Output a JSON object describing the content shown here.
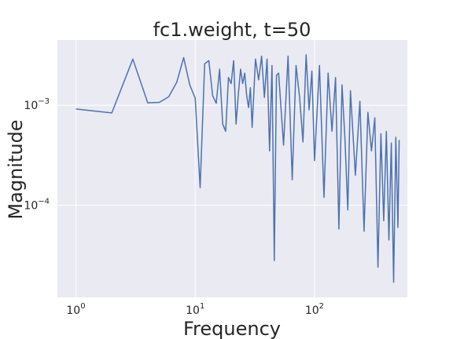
{
  "chart_data": {
    "type": "line",
    "title": "fc1.weight, t=50",
    "xlabel": "Frequency",
    "ylabel": "Magnitude",
    "xscale": "log",
    "yscale": "log",
    "xlim": [
      0.7,
      600
    ],
    "ylim": [
      1.2e-05,
      0.0045
    ],
    "grid": true,
    "background": "#EAEAF2",
    "line_color": "#4C72B0",
    "x_ticks": [
      {
        "value": 1,
        "base": "10",
        "exp": "0"
      },
      {
        "value": 10,
        "base": "10",
        "exp": "1"
      },
      {
        "value": 100,
        "base": "10",
        "exp": "2"
      }
    ],
    "y_ticks": [
      {
        "value": 0.0001,
        "base": "10",
        "exp": "−4"
      },
      {
        "value": 0.001,
        "base": "10",
        "exp": "−3"
      }
    ],
    "series": [
      {
        "x": [
          1,
          2,
          3,
          4,
          5,
          6,
          7,
          8,
          9,
          10,
          11,
          12,
          13,
          14,
          15,
          16,
          17,
          18,
          19,
          20,
          21,
          22,
          23,
          24,
          25,
          26,
          27,
          28,
          29,
          30,
          32,
          34,
          36,
          38,
          40,
          42,
          44,
          46,
          48,
          50,
          55,
          60,
          65,
          70,
          75,
          80,
          85,
          90,
          95,
          100,
          110,
          120,
          130,
          140,
          150,
          160,
          170,
          180,
          190,
          200,
          220,
          240,
          260,
          280,
          300,
          320,
          340,
          360,
          380,
          400,
          420,
          440,
          460,
          480,
          500,
          512
        ],
        "y": [
          0.00092,
          0.00084,
          0.0029,
          0.00106,
          0.00107,
          0.00122,
          0.0017,
          0.003,
          0.0016,
          0.00118,
          0.00015,
          0.0026,
          0.0028,
          0.00125,
          0.00105,
          0.0023,
          0.00065,
          0.00055,
          0.0019,
          0.00165,
          0.0028,
          0.00065,
          0.0013,
          0.0023,
          0.00165,
          0.0021,
          0.00125,
          0.00095,
          0.0015,
          0.0006,
          0.0029,
          0.0018,
          0.0031,
          0.0012,
          0.0029,
          0.00035,
          0.0025,
          2.8e-05,
          0.002,
          0.0021,
          0.0004,
          0.0031,
          0.00018,
          0.0025,
          0.0012,
          0.00043,
          0.0032,
          0.0009,
          0.0022,
          0.00028,
          0.0025,
          0.00012,
          0.0021,
          0.00055,
          0.0019,
          5.8e-05,
          0.0016,
          0.00045,
          9e-05,
          0.0014,
          0.0002,
          0.0011,
          5.5e-05,
          0.00085,
          0.00035,
          0.00075,
          2.4e-05,
          0.00052,
          7e-05,
          0.00055,
          4.5e-05,
          0.00042,
          1.7e-05,
          0.00048,
          6e-05,
          0.00045
        ]
      }
    ]
  }
}
